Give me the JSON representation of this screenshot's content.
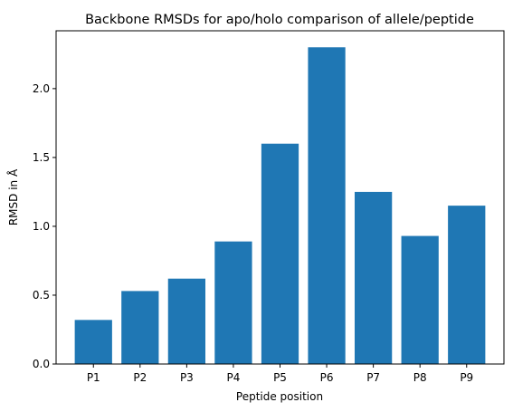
{
  "chart_data": {
    "type": "bar",
    "title": "Backbone RMSDs for apo/holo comparison of allele/peptide",
    "xlabel": "Peptide position",
    "ylabel": "RMSD in Å",
    "categories": [
      "P1",
      "P2",
      "P3",
      "P4",
      "P5",
      "P6",
      "P7",
      "P8",
      "P9"
    ],
    "values": [
      0.32,
      0.53,
      0.62,
      0.89,
      1.6,
      2.3,
      1.25,
      0.93,
      1.15
    ],
    "ylim": [
      0,
      2.42
    ],
    "yticks": [
      0.0,
      0.5,
      1.0,
      1.5,
      2.0
    ],
    "ytick_labels": [
      "0.0",
      "0.5",
      "1.0",
      "1.5",
      "2.0"
    ],
    "bar_color": "#1f77b4",
    "grid": false,
    "legend": "none"
  }
}
